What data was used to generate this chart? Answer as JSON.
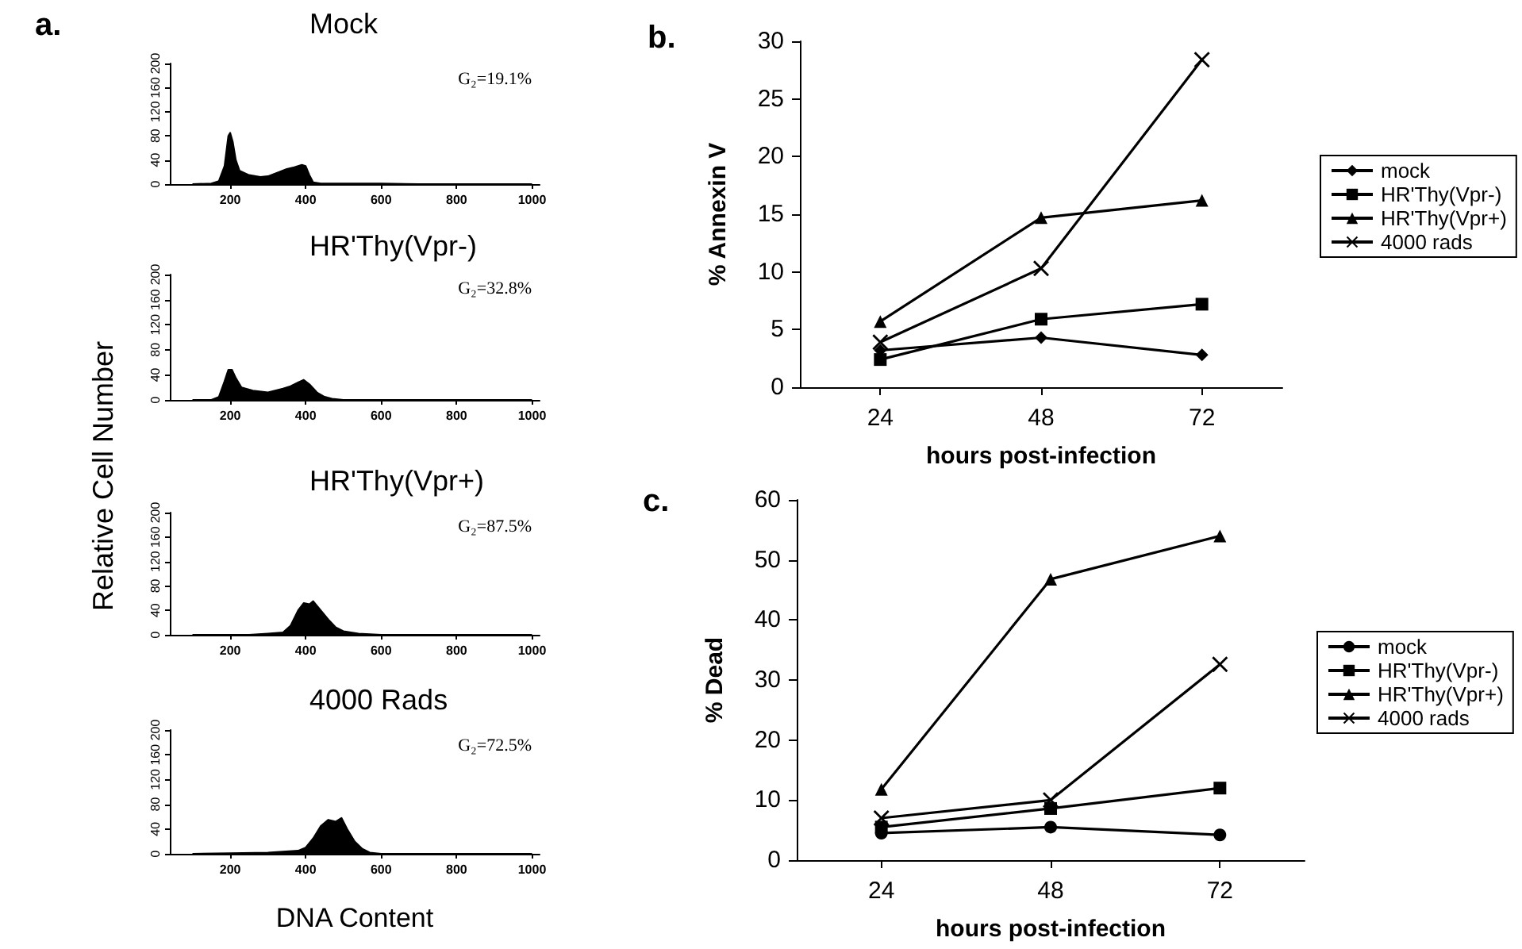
{
  "chart_data": [
    {
      "type": "area",
      "title": "Mock",
      "color": "#000000",
      "x": [
        100,
        150,
        170,
        185,
        195,
        200,
        207,
        215,
        225,
        250,
        280,
        300,
        330,
        350,
        370,
        390,
        400,
        410,
        420,
        440,
        500,
        600,
        700,
        1000
      ],
      "values": [
        0,
        1,
        5,
        30,
        80,
        85,
        70,
        40,
        22,
        15,
        12,
        13,
        20,
        25,
        28,
        32,
        30,
        15,
        3,
        1,
        1,
        1,
        0,
        0
      ],
      "xlim": [
        40,
        1020
      ],
      "xticks": [
        200,
        400,
        600,
        800,
        1000
      ],
      "ylim": [
        0,
        200
      ],
      "yticks": [
        0,
        40,
        80,
        120,
        160,
        200
      ],
      "annotations": [
        "a.",
        "G₂=19.1%"
      ],
      "grid": false
    },
    {
      "type": "area",
      "title": "HR'Thy(Vpr-)",
      "ylabel": "Relative Cell Number",
      "color": "#000000",
      "x": [
        100,
        150,
        170,
        185,
        195,
        205,
        215,
        230,
        260,
        300,
        340,
        360,
        380,
        395,
        410,
        430,
        450,
        470,
        500,
        700,
        1000
      ],
      "values": [
        0,
        0,
        5,
        30,
        48,
        48,
        35,
        20,
        15,
        12,
        18,
        22,
        28,
        32,
        25,
        12,
        5,
        2,
        0,
        0,
        0
      ],
      "xlim": [
        40,
        1020
      ],
      "xticks": [
        200,
        400,
        600,
        800,
        1000
      ],
      "ylim": [
        0,
        200
      ],
      "yticks": [
        0,
        40,
        80,
        120,
        160,
        200
      ],
      "annotations": [
        "G₂=32.8%"
      ],
      "grid": false
    },
    {
      "type": "area",
      "title": "HR'Thy(Vpr+)",
      "color": "#000000",
      "x": [
        100,
        250,
        300,
        340,
        360,
        380,
        395,
        410,
        420,
        440,
        460,
        480,
        500,
        540,
        600,
        1000
      ],
      "values": [
        0,
        0,
        2,
        4,
        15,
        40,
        52,
        50,
        55,
        40,
        25,
        12,
        6,
        2,
        0,
        0
      ],
      "xlim": [
        40,
        1020
      ],
      "xticks": [
        200,
        400,
        600,
        800,
        1000
      ],
      "ylim": [
        0,
        200
      ],
      "yticks": [
        0,
        40,
        80,
        120,
        160,
        200
      ],
      "annotations": [
        "G₂=87.5%"
      ],
      "grid": false
    },
    {
      "type": "area",
      "title": "4000 Rads",
      "xlabel": "DNA Content",
      "color": "#000000",
      "x": [
        100,
        200,
        300,
        380,
        400,
        420,
        440,
        460,
        480,
        495,
        510,
        530,
        550,
        570,
        600,
        1000
      ],
      "values": [
        0,
        1,
        2,
        5,
        10,
        25,
        45,
        55,
        52,
        58,
        40,
        20,
        8,
        2,
        0,
        0
      ],
      "xlim": [
        40,
        1020
      ],
      "xticks": [
        200,
        400,
        600,
        800,
        1000
      ],
      "ylim": [
        0,
        200
      ],
      "yticks": [
        0,
        40,
        80,
        120,
        160,
        200
      ],
      "annotations": [
        "G₂=72.5%"
      ],
      "grid": false
    },
    {
      "type": "line",
      "xlabel": "hours post-infection",
      "ylabel": "% Annexin V",
      "categories": [
        "24",
        "48",
        "72"
      ],
      "ylim": [
        0,
        30
      ],
      "yticks": [
        0,
        5,
        10,
        15,
        20,
        25,
        30
      ],
      "legend": "right",
      "grid": false,
      "annotations": [
        "b."
      ],
      "series": [
        {
          "name": "mock",
          "color": "#000000",
          "marker": "diamond",
          "values": [
            3.2,
            4.3,
            2.8
          ]
        },
        {
          "name": "HR'Thy(Vpr-)",
          "color": "#000000",
          "marker": "square",
          "values": [
            2.4,
            5.9,
            7.2
          ]
        },
        {
          "name": "HR'Thy(Vpr+)",
          "color": "#000000",
          "marker": "triangle",
          "values": [
            5.7,
            14.7,
            16.2
          ]
        },
        {
          "name": "4000 rads",
          "color": "#000000",
          "marker": "cross",
          "values": [
            3.9,
            10.3,
            28.4
          ]
        }
      ]
    },
    {
      "type": "line",
      "xlabel": "hours post-infection",
      "ylabel": "% Dead",
      "categories": [
        "24",
        "48",
        "72"
      ],
      "ylim": [
        0,
        60
      ],
      "yticks": [
        0,
        10,
        20,
        30,
        40,
        50,
        60
      ],
      "legend": "right",
      "grid": false,
      "annotations": [
        "c."
      ],
      "series": [
        {
          "name": "mock",
          "color": "#000000",
          "marker": "circle",
          "values": [
            4.5,
            5.5,
            4.2
          ]
        },
        {
          "name": "HR'Thy(Vpr-)",
          "color": "#000000",
          "marker": "square",
          "values": [
            5.5,
            8.6,
            12
          ]
        },
        {
          "name": "HR'Thy(Vpr+)",
          "color": "#000000",
          "marker": "triangle",
          "values": [
            11.8,
            46.8,
            54
          ]
        },
        {
          "name": "4000 rads",
          "color": "#000000",
          "marker": "cross",
          "values": [
            7,
            10,
            32.6
          ]
        }
      ]
    }
  ]
}
